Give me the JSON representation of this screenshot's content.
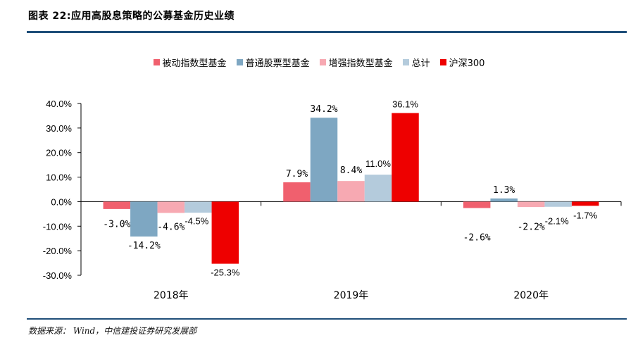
{
  "figure": {
    "title": "图表 22:应用高股息策略的公募基金历史业绩",
    "source": "数据来源： Wind，中信建投证券研究发展部"
  },
  "chart_data": {
    "type": "bar",
    "categories": [
      "2018年",
      "2019年",
      "2020年"
    ],
    "series": [
      {
        "name": "被动指数型基金",
        "color": "#f0606e",
        "values": [
          -3.0,
          7.9,
          -2.6
        ],
        "labels": [
          "-3.0%",
          "7.9%",
          "-2.6%"
        ]
      },
      {
        "name": "普通股票型基金",
        "color": "#7ea7c2",
        "values": [
          -14.2,
          34.2,
          1.3
        ],
        "labels": [
          "-14.2%",
          "34.2%",
          "1.3%"
        ]
      },
      {
        "name": "增强指数型基金",
        "color": "#f7a9b2",
        "values": [
          -4.6,
          8.4,
          -2.2
        ],
        "labels": [
          "-4.6%",
          "8.4%",
          "-2.2%"
        ]
      },
      {
        "name": "总计",
        "color": "#b4cbdc",
        "values": [
          -4.5,
          11.0,
          -2.1
        ],
        "labels": [
          "-4.5%",
          "11.0%",
          "-2.1%"
        ]
      },
      {
        "name": "沪深300",
        "color": "#ee0000",
        "values": [
          -25.3,
          36.1,
          -1.7
        ],
        "labels": [
          "-25.3%",
          "36.1%",
          "-1.7%"
        ]
      }
    ],
    "y_ticks": [
      "40.0%",
      "30.0%",
      "20.0%",
      "10.0%",
      "0.0%",
      "-10.0%",
      "-20.0%",
      "-30.0%"
    ],
    "ylim": [
      -30,
      40
    ],
    "legend_position": "top",
    "grid": false
  }
}
